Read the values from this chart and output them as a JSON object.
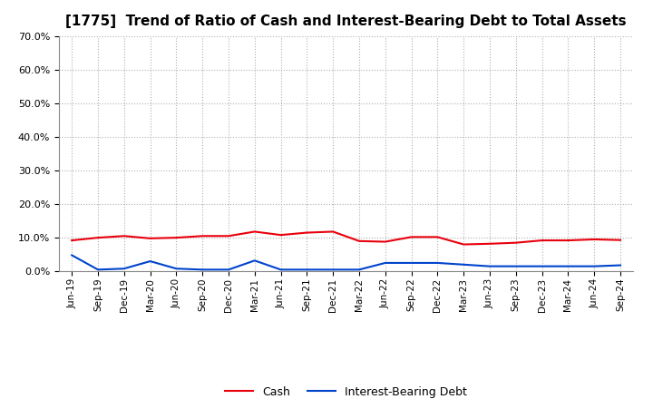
{
  "title": "[1775]  Trend of Ratio of Cash and Interest-Bearing Debt to Total Assets",
  "x_labels": [
    "Jun-19",
    "Sep-19",
    "Dec-19",
    "Mar-20",
    "Jun-20",
    "Sep-20",
    "Dec-20",
    "Mar-21",
    "Jun-21",
    "Sep-21",
    "Dec-21",
    "Mar-22",
    "Jun-22",
    "Sep-22",
    "Dec-22",
    "Mar-23",
    "Jun-23",
    "Sep-23",
    "Dec-23",
    "Mar-24",
    "Jun-24",
    "Sep-24"
  ],
  "cash": [
    9.2,
    10.0,
    10.5,
    9.8,
    10.0,
    10.5,
    10.5,
    11.8,
    10.8,
    11.5,
    11.8,
    9.0,
    8.8,
    10.2,
    10.2,
    8.0,
    8.2,
    8.5,
    9.2,
    9.2,
    9.5,
    9.3
  ],
  "ibd": [
    4.8,
    0.5,
    0.8,
    3.0,
    0.8,
    0.5,
    0.5,
    3.2,
    0.5,
    0.5,
    0.5,
    0.5,
    2.5,
    2.5,
    2.5,
    2.0,
    1.5,
    1.5,
    1.5,
    1.5,
    1.5,
    1.8
  ],
  "cash_color": "#e8000d",
  "ibd_color": "#0044cc",
  "ylim": [
    0,
    70
  ],
  "yticks": [
    0,
    10,
    20,
    30,
    40,
    50,
    60,
    70
  ],
  "background_color": "#ffffff",
  "plot_bg_color": "#ffffff",
  "grid_color": "#b0b0b0",
  "legend_cash": "Cash",
  "legend_ibd": "Interest-Bearing Debt",
  "title_fontsize": 11
}
